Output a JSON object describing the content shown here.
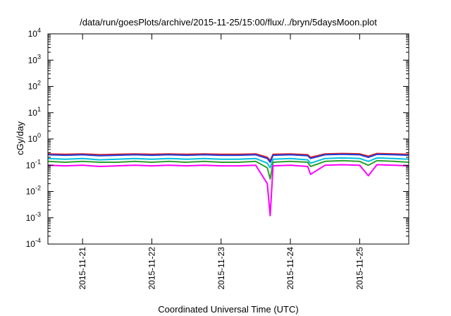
{
  "chart_data": {
    "type": "line",
    "title": "/data/run/goesPlots/archive/2015-11-25/15:00/flux/../bryn/5daysMoon.plot",
    "xlabel": "Coordinated Universal Time (UTC)",
    "ylabel": "cGy/day",
    "yscale": "log",
    "ylim": [
      0.0001,
      10000
    ],
    "xlim": [
      "2015-11-20T12:00",
      "2015-11-25T17:00"
    ],
    "grid": false,
    "yticks": [
      {
        "base": "10",
        "exp": "-4"
      },
      {
        "base": "10",
        "exp": "-3"
      },
      {
        "base": "10",
        "exp": "-2"
      },
      {
        "base": "10",
        "exp": "-1"
      },
      {
        "base": "10",
        "exp": "0"
      },
      {
        "base": "10",
        "exp": "1"
      },
      {
        "base": "10",
        "exp": "2"
      },
      {
        "base": "10",
        "exp": "3"
      },
      {
        "base": "10",
        "exp": "4"
      }
    ],
    "xticks": [
      "2015-11-21",
      "2015-11-22",
      "2015-11-23",
      "2015-11-24",
      "2015-11-25"
    ],
    "x": [
      "2015-11-20T12:00",
      "2015-11-20T18:00",
      "2015-11-21T00:00",
      "2015-11-21T06:00",
      "2015-11-21T12:00",
      "2015-11-21T18:00",
      "2015-11-22T00:00",
      "2015-11-22T06:00",
      "2015-11-22T12:00",
      "2015-11-22T18:00",
      "2015-11-23T00:00",
      "2015-11-23T06:00",
      "2015-11-23T12:00",
      "2015-11-23T16:00",
      "2015-11-23T17:00",
      "2015-11-23T18:00",
      "2015-11-24T00:00",
      "2015-11-24T06:00",
      "2015-11-24T07:00",
      "2015-11-24T12:00",
      "2015-11-24T18:00",
      "2015-11-25T00:00",
      "2015-11-25T03:00",
      "2015-11-25T06:00",
      "2015-11-25T12:00",
      "2015-11-25T17:00"
    ],
    "series": [
      {
        "color": "#e41a1c",
        "values": [
          0.27,
          0.26,
          0.27,
          0.25,
          0.26,
          0.27,
          0.26,
          0.27,
          0.26,
          0.27,
          0.26,
          0.26,
          0.27,
          0.2,
          0.15,
          0.26,
          0.27,
          0.25,
          0.2,
          0.27,
          0.28,
          0.27,
          0.22,
          0.28,
          0.27,
          0.26
        ]
      },
      {
        "color": "#1f3fd8",
        "values": [
          0.25,
          0.24,
          0.25,
          0.23,
          0.24,
          0.25,
          0.24,
          0.25,
          0.24,
          0.25,
          0.24,
          0.24,
          0.25,
          0.18,
          0.13,
          0.24,
          0.25,
          0.23,
          0.18,
          0.25,
          0.26,
          0.25,
          0.2,
          0.26,
          0.25,
          0.24
        ]
      },
      {
        "color": "#00c0e0",
        "values": [
          0.18,
          0.17,
          0.18,
          0.16,
          0.17,
          0.18,
          0.17,
          0.18,
          0.17,
          0.18,
          0.17,
          0.17,
          0.18,
          0.12,
          0.08,
          0.17,
          0.18,
          0.16,
          0.12,
          0.18,
          0.19,
          0.18,
          0.14,
          0.19,
          0.18,
          0.17
        ]
      },
      {
        "color": "#2ca02c",
        "values": [
          0.14,
          0.13,
          0.14,
          0.13,
          0.13,
          0.14,
          0.13,
          0.14,
          0.13,
          0.14,
          0.13,
          0.13,
          0.14,
          0.08,
          0.03,
          0.13,
          0.14,
          0.13,
          0.09,
          0.14,
          0.15,
          0.14,
          0.1,
          0.15,
          0.14,
          0.13
        ]
      },
      {
        "color": "#ff00ff",
        "values": [
          0.1,
          0.095,
          0.1,
          0.09,
          0.095,
          0.1,
          0.095,
          0.1,
          0.095,
          0.1,
          0.095,
          0.095,
          0.1,
          0.02,
          0.0012,
          0.095,
          0.1,
          0.09,
          0.045,
          0.1,
          0.105,
          0.1,
          0.04,
          0.105,
          0.1,
          0.095
        ]
      }
    ]
  }
}
